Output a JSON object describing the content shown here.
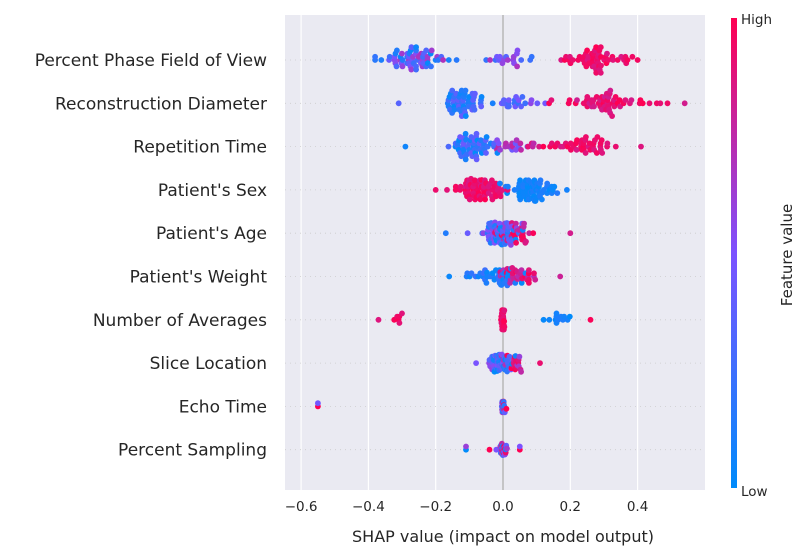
{
  "chart_data": {
    "type": "scatter",
    "subtype": "shap-beeswarm",
    "title": "",
    "xlabel": "SHAP value (impact on model output)",
    "ylabel": "",
    "xlim": [
      -0.62,
      0.6
    ],
    "xticks": [
      -0.6,
      -0.4,
      -0.2,
      0.0,
      0.2,
      0.4
    ],
    "xtick_labels": [
      "−0.6",
      "−0.4",
      "−0.2",
      "0.0",
      "0.2",
      "0.4"
    ],
    "grid": true,
    "colorbar": {
      "label": "Feature value",
      "high_label": "High",
      "low_label": "Low",
      "low_color": "#008bfb",
      "mid_color": "#7c52ff",
      "high_color": "#ff0052"
    },
    "features": [
      {
        "name": "Percent Phase Field of View",
        "groups": [
          {
            "center": -0.26,
            "spread": 0.09,
            "n": 60,
            "lo": 0.0,
            "hi": 0.7
          },
          {
            "center": 0.02,
            "spread": 0.06,
            "n": 18,
            "lo": 0.2,
            "hi": 0.7
          },
          {
            "center": 0.26,
            "spread": 0.1,
            "n": 55,
            "lo": 0.85,
            "hi": 1.0
          }
        ],
        "min": -0.38,
        "max": 0.4,
        "width": 14
      },
      {
        "name": "Reconstruction Diameter",
        "groups": [
          {
            "center": -0.12,
            "spread": 0.05,
            "n": 50,
            "lo": 0.0,
            "hi": 0.45
          },
          {
            "center": 0.05,
            "spread": 0.07,
            "n": 20,
            "lo": 0.2,
            "hi": 0.6
          },
          {
            "center": 0.3,
            "spread": 0.11,
            "n": 55,
            "lo": 0.82,
            "hi": 1.0
          }
        ],
        "min": -0.31,
        "max": 0.54,
        "width": 14
      },
      {
        "name": "Repetition Time",
        "groups": [
          {
            "center": -0.09,
            "spread": 0.05,
            "n": 55,
            "lo": 0.0,
            "hi": 0.45
          },
          {
            "center": 0.04,
            "spread": 0.05,
            "n": 20,
            "lo": 0.4,
            "hi": 0.8
          },
          {
            "center": 0.22,
            "spread": 0.1,
            "n": 45,
            "lo": 0.85,
            "hi": 1.0
          }
        ],
        "min": -0.29,
        "max": 0.41,
        "width": 13
      },
      {
        "name": "Patient's Sex",
        "groups": [
          {
            "center": -0.07,
            "spread": 0.06,
            "n": 70,
            "lo": 0.85,
            "hi": 1.0
          },
          {
            "center": 0.08,
            "spread": 0.06,
            "n": 70,
            "lo": 0.0,
            "hi": 0.15
          }
        ],
        "min": -0.2,
        "max": 0.19,
        "width": 12
      },
      {
        "name": "Patient's Age",
        "groups": [
          {
            "center": -0.01,
            "spread": 0.05,
            "n": 80,
            "lo": 0.0,
            "hi": 0.65
          },
          {
            "center": 0.04,
            "spread": 0.05,
            "n": 30,
            "lo": 0.7,
            "hi": 1.0
          }
        ],
        "min": -0.17,
        "max": 0.2,
        "width": 12
      },
      {
        "name": "Patient's Weight",
        "groups": [
          {
            "center": -0.02,
            "spread": 0.06,
            "n": 45,
            "lo": 0.0,
            "hi": 0.25
          },
          {
            "center": 0.04,
            "spread": 0.05,
            "n": 35,
            "lo": 0.7,
            "hi": 1.0
          }
        ],
        "min": -0.16,
        "max": 0.17,
        "width": 9
      },
      {
        "name": "Number of Averages",
        "groups": [
          {
            "center": 0.0,
            "spread": 0.004,
            "n": 35,
            "lo": 0.85,
            "hi": 1.0
          },
          {
            "center": 0.17,
            "spread": 0.04,
            "n": 12,
            "lo": 0.0,
            "hi": 0.12
          },
          {
            "center": -0.31,
            "spread": 0.04,
            "n": 6,
            "lo": 0.88,
            "hi": 1.0
          }
        ],
        "min": -0.37,
        "max": 0.26,
        "width": 10
      },
      {
        "name": "Slice Location",
        "groups": [
          {
            "center": 0.0,
            "spread": 0.03,
            "n": 60,
            "lo": 0.0,
            "hi": 0.6
          },
          {
            "center": 0.03,
            "spread": 0.03,
            "n": 20,
            "lo": 0.6,
            "hi": 1.0
          }
        ],
        "min": -0.08,
        "max": 0.11,
        "width": 9
      },
      {
        "name": "Echo Time",
        "groups": [
          {
            "center": 0.0,
            "spread": 0.003,
            "n": 35,
            "lo": 0.0,
            "hi": 1.0
          }
        ],
        "extra": [
          {
            "x": -0.55,
            "v": 1.0
          }
        ],
        "min": -0.55,
        "max": 0.01,
        "width": 6
      },
      {
        "name": "Percent Sampling",
        "groups": [
          {
            "center": 0.0,
            "spread": 0.008,
            "n": 40,
            "lo": 0.0,
            "hi": 1.0
          }
        ],
        "extra": [
          {
            "x": -0.11,
            "v": 0.0
          },
          {
            "x": -0.04,
            "v": 1.0
          },
          {
            "x": 0.05,
            "v": 1.0
          },
          {
            "x": -0.02,
            "v": 0.5
          }
        ],
        "min": -0.11,
        "max": 0.05,
        "width": 6
      }
    ]
  }
}
